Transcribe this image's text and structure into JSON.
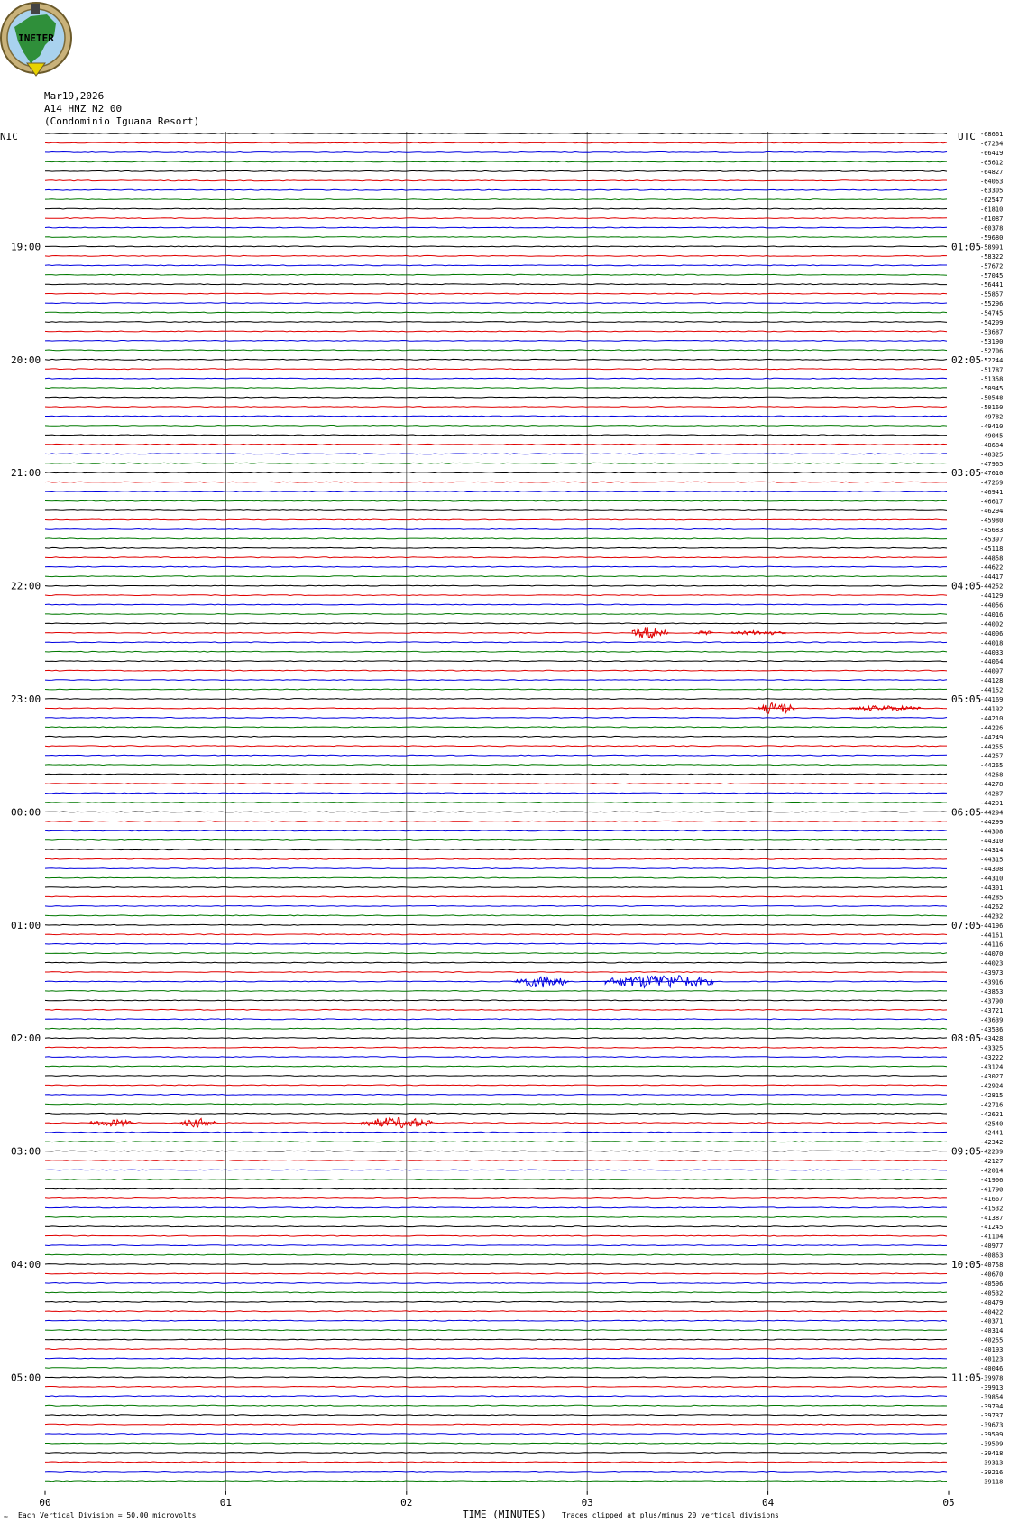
{
  "logo": {
    "text": "INETER",
    "icon": "ineter-globe-logo"
  },
  "header": {
    "date": "Mar19,2026",
    "station": "A14 HNZ N2 00",
    "site": "(Condominio Iguana Resort)"
  },
  "left_timezone": "NIC",
  "right_timezone": "UTC",
  "footer": {
    "scale_text": "Each Vertical Division =    50.00 microvolts",
    "axis_title": "TIME (MINUTES)",
    "clip_text": "Traces clipped at plus/minus 20 vertical divisions"
  },
  "colors": {
    "black": "#000000",
    "red": "#e00000",
    "blue": "#0000e0",
    "green": "#007800",
    "grid": "#6a6a6a"
  },
  "chart_data": {
    "type": "line",
    "title": "",
    "xlabel": "TIME (MINUTES)",
    "ylabel": "",
    "xlim": [
      0,
      5
    ],
    "x_tick_labels": [
      "00",
      "01",
      "02",
      "03",
      "04",
      "05"
    ],
    "trace_count": 144,
    "trace_colors": [
      "black",
      "red",
      "blue",
      "green"
    ],
    "left_hour_labels": [
      "19:00",
      "20:00",
      "21:00",
      "22:00",
      "23:00",
      "00:00",
      "01:00",
      "02:00",
      "03:00",
      "04:00",
      "05:00"
    ],
    "right_hour_labels": [
      "01:05",
      "02:05",
      "03:05",
      "04:05",
      "05:05",
      "06:05",
      "07:05",
      "08:05",
      "09:05",
      "10:05",
      "11:05"
    ],
    "trace_offsets": [
      -68661,
      -67234,
      -66419,
      -65612,
      -64827,
      -64063,
      -63305,
      -62547,
      -61810,
      -61087,
      -60378,
      -59680,
      -58991,
      -58322,
      -57672,
      -57045,
      -56441,
      -55857,
      -55296,
      -54745,
      -54209,
      -53687,
      -53190,
      -52706,
      -52244,
      -51787,
      -51358,
      -50945,
      -50548,
      -50160,
      -49782,
      -49410,
      -49045,
      -48684,
      -48325,
      -47965,
      -47610,
      -47269,
      -46941,
      -46617,
      -46294,
      -45980,
      -45683,
      -45397,
      -45118,
      -44858,
      -44622,
      -44417,
      -44252,
      -44129,
      -44056,
      -44016,
      -44002,
      -44006,
      -44018,
      -44033,
      -44064,
      -44097,
      -44128,
      -44152,
      -44169,
      -44192,
      -44210,
      -44226,
      -44249,
      -44255,
      -44257,
      -44265,
      -44268,
      -44278,
      -44287,
      -44291,
      -44294,
      -44299,
      -44308,
      -44310,
      -44314,
      -44315,
      -44308,
      -44310,
      -44301,
      -44285,
      -44262,
      -44232,
      -44196,
      -44161,
      -44116,
      -44070,
      -44023,
      -43973,
      -43916,
      -43853,
      -43790,
      -43721,
      -43639,
      -43536,
      -43428,
      -43325,
      -43222,
      -43124,
      -43027,
      -42924,
      -42815,
      -42716,
      -42621,
      -42540,
      -42441,
      -42342,
      -42239,
      -42127,
      -42014,
      -41906,
      -41790,
      -41667,
      -41532,
      -41387,
      -41245,
      -41104,
      -40977,
      -40863,
      -40758,
      -40670,
      -40596,
      -40532,
      -40479,
      -40422,
      -40371,
      -40314,
      -40255,
      -40193,
      -40123,
      -40046,
      -39978,
      -39913,
      -39854,
      -39794,
      -39737,
      -39673,
      -39599,
      -39509,
      -39418,
      -39313,
      -39216,
      -39118
    ],
    "events": [
      {
        "trace": 53,
        "start_min": 3.25,
        "end_min": 3.45,
        "amp": 7
      },
      {
        "trace": 53,
        "start_min": 3.6,
        "end_min": 3.7,
        "amp": 3
      },
      {
        "trace": 53,
        "start_min": 3.8,
        "end_min": 4.1,
        "amp": 2.5
      },
      {
        "trace": 61,
        "start_min": 3.95,
        "end_min": 4.15,
        "amp": 7
      },
      {
        "trace": 61,
        "start_min": 4.45,
        "end_min": 4.85,
        "amp": 3
      },
      {
        "trace": 90,
        "start_min": 2.6,
        "end_min": 2.9,
        "amp": 7
      },
      {
        "trace": 90,
        "start_min": 3.1,
        "end_min": 3.7,
        "amp": 8
      },
      {
        "trace": 105,
        "start_min": 0.25,
        "end_min": 0.5,
        "amp": 4
      },
      {
        "trace": 105,
        "start_min": 0.75,
        "end_min": 0.95,
        "amp": 5
      },
      {
        "trace": 105,
        "start_min": 1.75,
        "end_min": 2.15,
        "amp": 6
      }
    ]
  }
}
